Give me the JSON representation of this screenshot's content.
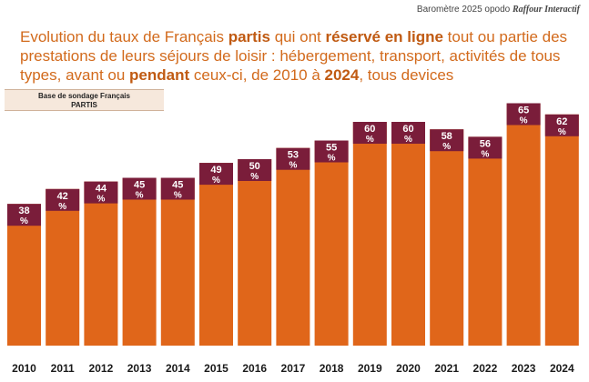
{
  "header": {
    "source_prefix": "Baromètre 2025 opodo ",
    "source_brand": "Raffour Interactif",
    "title_parts": [
      {
        "text": "Evolution du taux de Français ",
        "bold": false
      },
      {
        "text": "partis",
        "bold": true
      },
      {
        "text": " qui ont ",
        "bold": false
      },
      {
        "text": "réservé en ligne",
        "bold": true
      },
      {
        "text": " tout ou partie des prestations de leurs séjours de loisir : hébergement, transport, activités de tous types, avant ou ",
        "bold": false
      },
      {
        "text": "pendant",
        "bold": true
      },
      {
        "text": " ceux-ci, de 2010 à ",
        "bold": false
      },
      {
        "text": "2024",
        "bold": true
      },
      {
        "text": ", tous devices",
        "bold": false
      }
    ]
  },
  "base_box": {
    "line1": "Base de sondage Français",
    "line2": "PARTIS"
  },
  "chart_data": {
    "type": "bar",
    "categories": [
      "2010",
      "2011",
      "2012",
      "2013",
      "2014",
      "2015",
      "2016",
      "2017",
      "2018",
      "2019",
      "2020",
      "2021",
      "2022",
      "2023",
      "2024"
    ],
    "values": [
      38,
      42,
      44,
      45,
      45,
      49,
      50,
      53,
      55,
      60,
      60,
      58,
      56,
      65,
      62
    ],
    "labels": [
      "38\n%",
      "42\n%",
      "44\n%",
      "45\n%",
      "45\n%",
      "49\n%",
      "50\n%",
      "53\n%",
      "55\n%",
      "60\n%",
      "60\n%",
      "58\n%",
      "56\n%",
      "65\n%",
      "62\n%"
    ],
    "title": "",
    "xlabel": "",
    "ylabel": "",
    "ylim": [
      0,
      70
    ],
    "grid": false,
    "colors": {
      "bar_body": "#e0661a",
      "bar_cap": "#7a1d3a"
    }
  }
}
